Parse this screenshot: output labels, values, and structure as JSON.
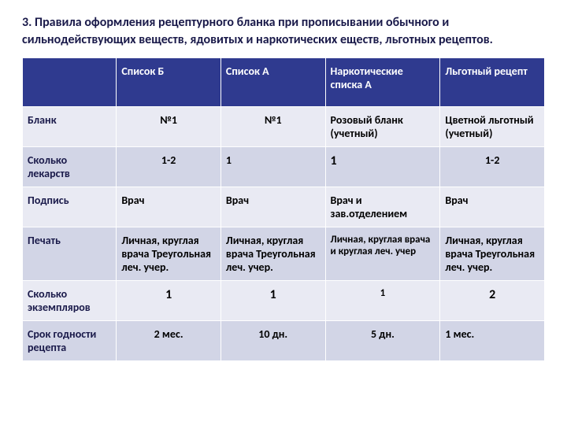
{
  "title": "3. Правила оформления рецептурного бланка при прописывании обычного и сильнодействующих веществ, ядовитых и наркотических еществ, льготных рецептов.",
  "headers": {
    "c1": "",
    "c2": "Список Б",
    "c3": "Список А",
    "c4": "Наркотические списка А",
    "c5": "Льготный рецепт"
  },
  "rows": [
    {
      "label": "Бланк",
      "c2": "№1",
      "c3": "№1",
      "c4": "Розовый бланк (учетный)",
      "c5": "Цветной льготный (учетный)"
    },
    {
      "label": "Сколько лекарств",
      "c2": "1-2",
      "c3": "1",
      "c4": "1",
      "c5": "1-2"
    },
    {
      "label": "Подпись",
      "c2": "Врач",
      "c3": "Врач",
      "c4": "Врач и зав.отделением",
      "c5": "Врач"
    },
    {
      "label": "Печать",
      "c2": "Личная, круглая врача Треугольная леч. учер.",
      "c3": "Личная, круглая врача Треугольная леч. учер.",
      "c4": "Личная, круглая врача и круглая леч. учер",
      "c5": "Личная, круглая врача Треугольная леч. учер."
    },
    {
      "label": "Сколько экземпляров",
      "c2": "1",
      "c3": "1",
      "c4": "1",
      "c5": "2"
    },
    {
      "label": "Срок годности рецепта",
      "c2": "2 мес.",
      "c3": "10 дн.",
      "c4": "5 дн.",
      "c5": "1 мес."
    }
  ]
}
